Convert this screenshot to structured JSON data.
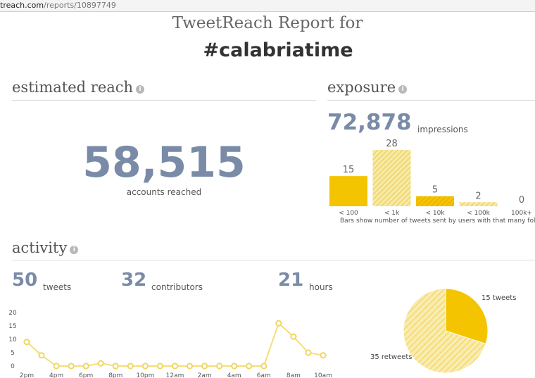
{
  "browser": {
    "url_host": "treach.com",
    "url_path": "/reports/10897749"
  },
  "header": {
    "title": "TweetReach Report for",
    "hashtag": "#calabriatime"
  },
  "reach": {
    "heading": "estimated reach",
    "value": "58,515",
    "label": "accounts reached"
  },
  "exposure": {
    "heading": "exposure",
    "value": "72,878",
    "label": "impressions",
    "note": "Bars show number of tweets sent by users with that many followers"
  },
  "activity": {
    "heading": "activity",
    "tweets": {
      "value": "50",
      "label": "tweets"
    },
    "contributors": {
      "value": "32",
      "label": "contributors"
    },
    "hours": {
      "value": "21",
      "label": "hours"
    }
  },
  "colors": {
    "accent": "#7a8ba8",
    "yellow": "#f5c400",
    "light_yellow": "#f3de7a"
  },
  "chart_data": [
    {
      "type": "bar",
      "categories": [
        "< 100",
        "< 1k",
        "< 10k",
        "< 100k",
        "100k+"
      ],
      "values": [
        15,
        28,
        5,
        2,
        0
      ],
      "title": "",
      "xlabel": "",
      "ylabel": ""
    },
    {
      "type": "line",
      "x": [
        "2pm",
        "3pm",
        "4pm",
        "5pm",
        "6pm",
        "7pm",
        "8pm",
        "9pm",
        "10pm",
        "11pm",
        "12am",
        "1am",
        "2am",
        "3am",
        "4am",
        "5am",
        "6am",
        "7am",
        "8am",
        "9am",
        "10am"
      ],
      "tick_labels": [
        "2pm",
        "4pm",
        "6pm",
        "8pm",
        "10pm",
        "12am",
        "2am",
        "4am",
        "6am",
        "8am",
        "10am"
      ],
      "values": [
        9,
        4,
        0,
        0,
        0,
        1,
        0,
        0,
        0,
        0,
        0,
        0,
        0,
        0,
        0,
        0,
        0,
        16,
        11,
        5,
        4
      ],
      "yticks": [
        0,
        5,
        10,
        15,
        20
      ],
      "ylim": [
        0,
        20
      ]
    },
    {
      "type": "pie",
      "slices": [
        {
          "label": "15 tweets",
          "value": 15,
          "color": "#f5c400"
        },
        {
          "label": "35 retweets",
          "value": 35,
          "color": "#f3de7a"
        }
      ]
    }
  ]
}
